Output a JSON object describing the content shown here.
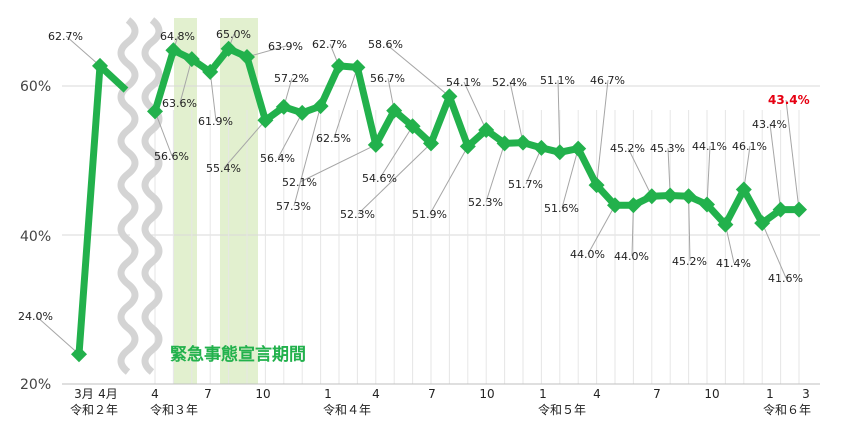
{
  "chart_data": {
    "type": "line",
    "ylim": [
      20,
      65
    ],
    "yticks": [
      "20%",
      "40%",
      "60%"
    ],
    "grid": true,
    "series_color": "#22b14c",
    "highlight_color": "#e60012",
    "band_color": "#e2f0cf",
    "band_label": "緊急事態宣言期間",
    "points": [
      {
        "v": 24.0,
        "label": "24.0%"
      },
      {
        "v": 62.7,
        "label": "62.7%"
      },
      {
        "v": 56.6,
        "label": "56.6%"
      },
      {
        "v": 64.8,
        "label": "64.8%"
      },
      {
        "v": 63.6,
        "label": "63.6%"
      },
      {
        "v": 61.9,
        "label": "61.9%"
      },
      {
        "v": 65.0,
        "label": "65.0%"
      },
      {
        "v": 63.9,
        "label": "63.9%"
      },
      {
        "v": 55.4,
        "label": "55.4%"
      },
      {
        "v": 57.2,
        "label": "57.2%"
      },
      {
        "v": 56.4,
        "label": "56.4%"
      },
      {
        "v": 57.3,
        "label": "57.3%"
      },
      {
        "v": 62.7,
        "label": "62.7%"
      },
      {
        "v": 62.5,
        "label": "62.5%"
      },
      {
        "v": 52.1,
        "label": "52.1%"
      },
      {
        "v": 56.7,
        "label": "56.7%"
      },
      {
        "v": 54.6,
        "label": "54.6%"
      },
      {
        "v": 52.3,
        "label": "52.3%"
      },
      {
        "v": 58.6,
        "label": "58.6%"
      },
      {
        "v": 51.9,
        "label": "51.9%"
      },
      {
        "v": 54.1,
        "label": "54.1%"
      },
      {
        "v": 52.3,
        "label": "52.3%"
      },
      {
        "v": 52.4,
        "label": "52.4%"
      },
      {
        "v": 51.7,
        "label": "51.7%"
      },
      {
        "v": 51.1,
        "label": "51.1%"
      },
      {
        "v": 51.6,
        "label": "51.6%"
      },
      {
        "v": 46.7,
        "label": "46.7%"
      },
      {
        "v": 44.0,
        "label": "44.0%"
      },
      {
        "v": 44.0,
        "label": "44.0%"
      },
      {
        "v": 45.2,
        "label": "45.2%"
      },
      {
        "v": 45.3,
        "label": "45.3%"
      },
      {
        "v": 45.2,
        "label": "45.2%"
      },
      {
        "v": 44.1,
        "label": "44.1%"
      },
      {
        "v": 41.4,
        "label": "41.4%"
      },
      {
        "v": 46.1,
        "label": "46.1%"
      },
      {
        "v": 41.6,
        "label": "41.6%"
      },
      {
        "v": 43.4,
        "label": "43.4%"
      },
      {
        "v": 43.4,
        "label": "43.4%"
      }
    ],
    "x_tick_labels": [
      "3月",
      "4月",
      "4",
      "7",
      "10",
      "1",
      "4",
      "7",
      "10",
      "1",
      "4",
      "7",
      "10",
      "1",
      "3"
    ],
    "era_labels": [
      "令和２年",
      "令和３年",
      "令和４年",
      "令和５年",
      "令和６年"
    ]
  }
}
